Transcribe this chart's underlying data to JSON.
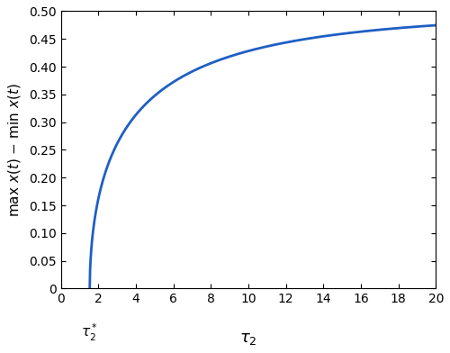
{
  "tau2_star": 1.545,
  "tau2_min": 0,
  "tau2_max": 20,
  "ylim_min": 0,
  "ylim_max": 0.5,
  "asymptote": 0.5,
  "line_color": "#1f5fc4",
  "line_width": 2.0,
  "xticks": [
    0,
    2,
    4,
    6,
    8,
    10,
    12,
    14,
    16,
    18,
    20
  ],
  "yticks": [
    0,
    0.05,
    0.1,
    0.15,
    0.2,
    0.25,
    0.3,
    0.35,
    0.4,
    0.45,
    0.5
  ],
  "ytick_labels": [
    "0",
    "0.05",
    "0.10",
    "0.15",
    "0.20",
    "0.25",
    "0.30",
    "0.35",
    "0.40",
    "0.45",
    "0.50"
  ],
  "background_color": "#ffffff",
  "curve_k": 0.6,
  "curve_alpha": 0.55
}
